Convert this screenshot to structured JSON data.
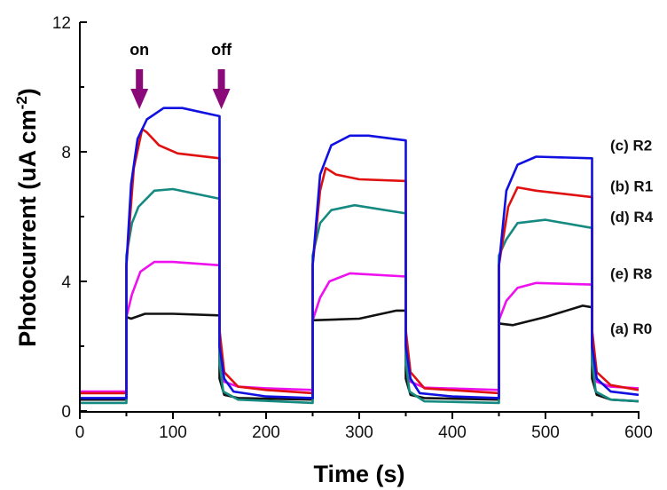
{
  "chart_data": {
    "type": "line",
    "title": "",
    "xlabel": "Time (s)",
    "ylabel": "Photocurrent (uA cm-2)",
    "ylabel_main": "Photocurrent (uA cm",
    "ylabel_sup": "-2",
    "ylabel_end": ")",
    "xlim": [
      0,
      600
    ],
    "ylim": [
      0,
      12
    ],
    "xticks": [
      0,
      100,
      200,
      300,
      400,
      500,
      600
    ],
    "yticks": [
      0,
      4,
      8,
      12
    ],
    "grid": false,
    "annotations": [
      {
        "text": "on",
        "x": 64,
        "color": "#8b0a7a"
      },
      {
        "text": "off",
        "x": 152,
        "color": "#8b0a7a"
      }
    ],
    "series": [
      {
        "name": "(c) R2",
        "color": "#1010e0",
        "label_x": 560,
        "label_y": 8.2,
        "points": [
          [
            0,
            0.4
          ],
          [
            50,
            0.4
          ],
          [
            50,
            4.5
          ],
          [
            55,
            7.0
          ],
          [
            62,
            8.4
          ],
          [
            72,
            9.0
          ],
          [
            90,
            9.35
          ],
          [
            110,
            9.35
          ],
          [
            150,
            9.1
          ],
          [
            150,
            2.0
          ],
          [
            155,
            1.0
          ],
          [
            165,
            0.6
          ],
          [
            200,
            0.45
          ],
          [
            250,
            0.4
          ],
          [
            250,
            4.5
          ],
          [
            258,
            7.3
          ],
          [
            270,
            8.2
          ],
          [
            290,
            8.5
          ],
          [
            310,
            8.5
          ],
          [
            350,
            8.35
          ],
          [
            350,
            2.0
          ],
          [
            355,
            1.0
          ],
          [
            365,
            0.55
          ],
          [
            400,
            0.45
          ],
          [
            450,
            0.4
          ],
          [
            450,
            4.5
          ],
          [
            458,
            6.8
          ],
          [
            470,
            7.6
          ],
          [
            490,
            7.85
          ],
          [
            550,
            7.8
          ],
          [
            550,
            2.0
          ],
          [
            555,
            1.0
          ],
          [
            570,
            0.6
          ],
          [
            600,
            0.5
          ]
        ]
      },
      {
        "name": "(b) R1",
        "color": "#e01010",
        "label_x": 560,
        "label_y": 6.95,
        "points": [
          [
            0,
            0.55
          ],
          [
            50,
            0.55
          ],
          [
            50,
            4.5
          ],
          [
            58,
            7.5
          ],
          [
            67,
            8.7
          ],
          [
            72,
            8.6
          ],
          [
            85,
            8.2
          ],
          [
            105,
            7.95
          ],
          [
            150,
            7.8
          ],
          [
            150,
            2.5
          ],
          [
            155,
            1.2
          ],
          [
            170,
            0.75
          ],
          [
            200,
            0.65
          ],
          [
            250,
            0.55
          ],
          [
            250,
            4.5
          ],
          [
            258,
            6.8
          ],
          [
            264,
            7.5
          ],
          [
            275,
            7.3
          ],
          [
            300,
            7.15
          ],
          [
            350,
            7.1
          ],
          [
            350,
            2.5
          ],
          [
            355,
            1.2
          ],
          [
            370,
            0.7
          ],
          [
            450,
            0.55
          ],
          [
            450,
            4.5
          ],
          [
            460,
            6.3
          ],
          [
            470,
            6.9
          ],
          [
            490,
            6.8
          ],
          [
            550,
            6.6
          ],
          [
            550,
            2.5
          ],
          [
            555,
            1.2
          ],
          [
            570,
            0.8
          ],
          [
            600,
            0.65
          ]
        ]
      },
      {
        "name": "(d) R4",
        "color": "#158a80",
        "label_x": 560,
        "label_y": 6.0,
        "points": [
          [
            0,
            0.25
          ],
          [
            50,
            0.25
          ],
          [
            50,
            4.8
          ],
          [
            56,
            5.8
          ],
          [
            63,
            6.3
          ],
          [
            80,
            6.8
          ],
          [
            100,
            6.85
          ],
          [
            150,
            6.55
          ],
          [
            150,
            1.5
          ],
          [
            154,
            0.6
          ],
          [
            170,
            0.35
          ],
          [
            250,
            0.25
          ],
          [
            250,
            4.8
          ],
          [
            258,
            5.8
          ],
          [
            270,
            6.2
          ],
          [
            295,
            6.35
          ],
          [
            350,
            6.1
          ],
          [
            350,
            1.5
          ],
          [
            354,
            0.6
          ],
          [
            370,
            0.3
          ],
          [
            450,
            0.25
          ],
          [
            450,
            4.8
          ],
          [
            458,
            5.3
          ],
          [
            470,
            5.8
          ],
          [
            500,
            5.9
          ],
          [
            550,
            5.65
          ],
          [
            550,
            1.5
          ],
          [
            554,
            0.6
          ],
          [
            570,
            0.35
          ],
          [
            600,
            0.3
          ]
        ]
      },
      {
        "name": "(e) R8",
        "color": "#ee10ee",
        "label_x": 560,
        "label_y": 4.25,
        "points": [
          [
            0,
            0.6
          ],
          [
            50,
            0.6
          ],
          [
            50,
            2.9
          ],
          [
            56,
            3.6
          ],
          [
            65,
            4.3
          ],
          [
            80,
            4.6
          ],
          [
            100,
            4.6
          ],
          [
            150,
            4.5
          ],
          [
            150,
            1.5
          ],
          [
            155,
            0.9
          ],
          [
            170,
            0.75
          ],
          [
            200,
            0.7
          ],
          [
            250,
            0.65
          ],
          [
            250,
            2.8
          ],
          [
            258,
            3.5
          ],
          [
            268,
            4.0
          ],
          [
            290,
            4.25
          ],
          [
            350,
            4.15
          ],
          [
            350,
            1.5
          ],
          [
            355,
            0.9
          ],
          [
            370,
            0.72
          ],
          [
            450,
            0.65
          ],
          [
            450,
            2.8
          ],
          [
            458,
            3.4
          ],
          [
            470,
            3.8
          ],
          [
            490,
            3.95
          ],
          [
            550,
            3.9
          ],
          [
            550,
            1.5
          ],
          [
            555,
            0.9
          ],
          [
            570,
            0.75
          ],
          [
            600,
            0.7
          ]
        ]
      },
      {
        "name": "(a) R0",
        "color": "#111111",
        "label_x": 560,
        "label_y": 2.55,
        "points": [
          [
            0,
            0.35
          ],
          [
            50,
            0.35
          ],
          [
            50,
            2.9
          ],
          [
            55,
            2.85
          ],
          [
            70,
            3.0
          ],
          [
            100,
            3.0
          ],
          [
            150,
            2.95
          ],
          [
            150,
            1.0
          ],
          [
            155,
            0.5
          ],
          [
            170,
            0.4
          ],
          [
            250,
            0.35
          ],
          [
            250,
            2.8
          ],
          [
            300,
            2.85
          ],
          [
            340,
            3.1
          ],
          [
            350,
            3.1
          ],
          [
            350,
            1.0
          ],
          [
            355,
            0.5
          ],
          [
            370,
            0.4
          ],
          [
            450,
            0.35
          ],
          [
            450,
            2.7
          ],
          [
            465,
            2.65
          ],
          [
            500,
            2.9
          ],
          [
            540,
            3.25
          ],
          [
            550,
            3.2
          ],
          [
            550,
            1.0
          ],
          [
            555,
            0.5
          ],
          [
            570,
            0.35
          ],
          [
            600,
            0.3
          ]
        ]
      }
    ]
  }
}
